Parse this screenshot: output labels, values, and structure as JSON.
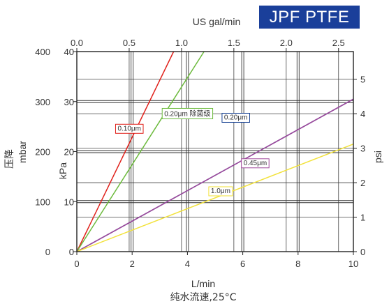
{
  "brand": {
    "label": "JPF PTFE",
    "bg_color": "#1a3f9a",
    "text_color": "#ffffff"
  },
  "chart_data": {
    "type": "line",
    "xlabel": "L/min",
    "xlabel2": "纯水流速,25°C",
    "top_xlabel": "US gal/min",
    "ylabel_kpa": "kPa",
    "ylabel_psi": "psi",
    "ylabel_mbar_cn": "压降",
    "ylabel_mbar_unit": "mbar",
    "xlim": [
      0,
      10
    ],
    "ylim_kpa": [
      0,
      40
    ],
    "x_ticks": [
      "0",
      "2",
      "4",
      "6",
      "8",
      "10"
    ],
    "top_ticks": [
      "0.0",
      "0.5",
      "1.0",
      "1.5",
      "2.0",
      "2.5"
    ],
    "top_tick_values_gal": [
      0,
      0.5,
      1.0,
      1.5,
      2.0,
      2.5
    ],
    "kpa_ticks": [
      "0",
      "10",
      "20",
      "30",
      "40"
    ],
    "mbar_ticks": [
      "0",
      "100",
      "200",
      "300",
      "400"
    ],
    "psi_ticks": [
      "0",
      "1",
      "2",
      "3",
      "4",
      "5"
    ],
    "psi_tick_values": [
      0,
      1,
      2,
      3,
      4,
      5
    ],
    "grid": true,
    "series": [
      {
        "name": "0.10μm",
        "color": "#e0211b",
        "x": [
          0,
          3.5
        ],
        "y": [
          0,
          40
        ]
      },
      {
        "name": "0.20μm 除菌级",
        "color": "#6cba3c",
        "x": [
          0,
          4.6
        ],
        "y": [
          0,
          40
        ]
      },
      {
        "name": "0.20μm",
        "color": "#1a4394",
        "x": [
          0,
          10
        ],
        "y": [
          0,
          30.5
        ]
      },
      {
        "name": "0.45μm",
        "color": "#a0489b",
        "x": [
          0,
          10
        ],
        "y": [
          0,
          30.5
        ]
      },
      {
        "name": "1.0μm",
        "color": "#f2e23a",
        "x": [
          0,
          10
        ],
        "y": [
          0,
          21.5
        ]
      }
    ],
    "label_anchor_x": [
      1.9,
      4.0,
      5.75,
      6.45,
      5.2
    ],
    "label_anchor_y": [
      24.7,
      27.6,
      26.9,
      17.8,
      12.2
    ]
  }
}
